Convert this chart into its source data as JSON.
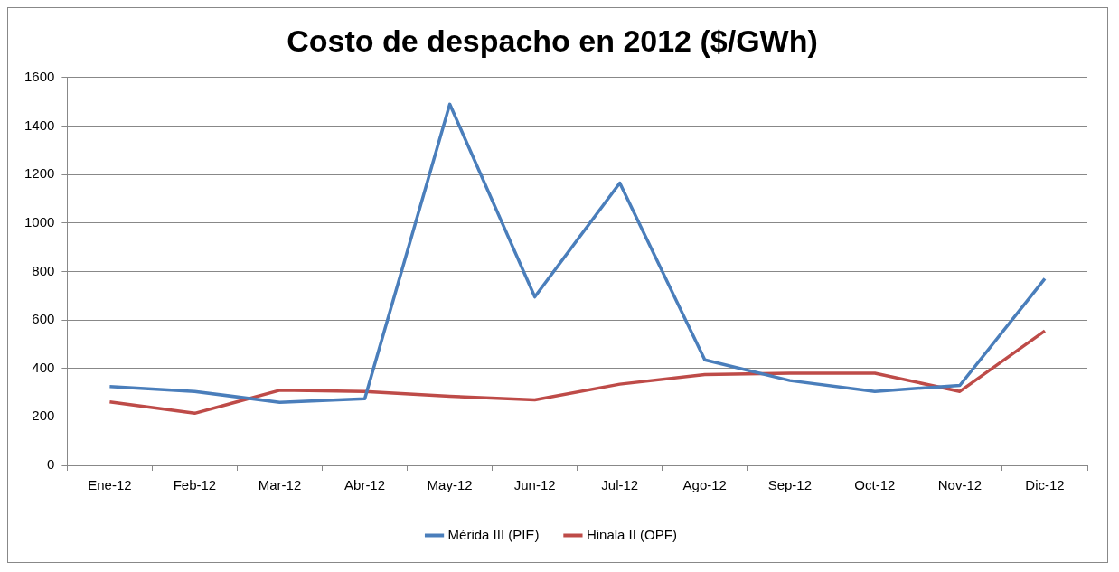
{
  "chart_data": {
    "type": "line",
    "title": "Costo de despacho en 2012 ($/GWh)",
    "categories": [
      "Ene-12",
      "Feb-12",
      "Mar-12",
      "Abr-12",
      "May-12",
      "Jun-12",
      "Jul-12",
      "Ago-12",
      "Sep-12",
      "Oct-12",
      "Nov-12",
      "Dic-12"
    ],
    "series": [
      {
        "name": "Mérida III (PIE)",
        "color": "#4a7ebb",
        "values": [
          325,
          305,
          260,
          275,
          1490,
          695,
          1165,
          435,
          350,
          305,
          330,
          770
        ]
      },
      {
        "name": "Hinala II (OPF)",
        "color": "#be4b48",
        "values": [
          262,
          215,
          310,
          305,
          285,
          270,
          335,
          375,
          380,
          380,
          305,
          555
        ]
      }
    ],
    "ylim": [
      0,
      1600
    ],
    "yticks": [
      0,
      200,
      400,
      600,
      800,
      1000,
      1200,
      1400,
      1600
    ],
    "grid": "y",
    "legend": "bottom",
    "marker": "none",
    "line_style": "solid"
  }
}
